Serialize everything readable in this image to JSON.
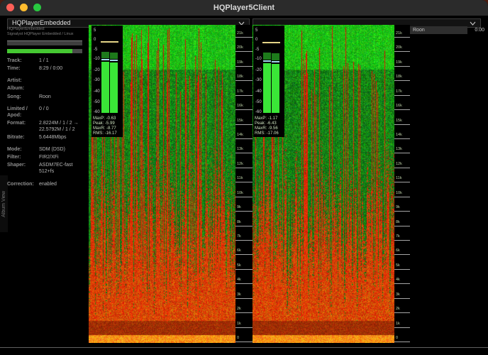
{
  "window": {
    "title": "HQPlayer5Client"
  },
  "titlebar": {
    "close_color": "#ff5f57",
    "minimize_color": "#febc2e",
    "zoom_color": "#28c840"
  },
  "toolbar": {
    "backend_value": "HQPlayerEmbedded",
    "secondary_value": ""
  },
  "sidebar": {
    "edge_tab_label": "Album View",
    "header_line1": "HQPlayer/Embedded:",
    "header_line2": "Signalyst HQPlayer Embedded / Linux",
    "track_position_pct": 87,
    "track_position_color": "#45c832",
    "info_groups": [
      [
        {
          "label": "Track:",
          "value": "1 / 1"
        },
        {
          "label": "Time:",
          "value": "8:29 / 0:00"
        }
      ],
      [
        {
          "label": "Artist:",
          "value": ""
        },
        {
          "label": "Album:",
          "value": ""
        },
        {
          "label": "Song:",
          "value": "Roon"
        }
      ],
      [
        {
          "label": "Limited / Apod:",
          "value": "0 / 0"
        },
        {
          "label": "Format:",
          "value": "2.8224M / 1 / 2 → 22.5792M / 1 / 2"
        },
        {
          "label": "Bitrate:",
          "value": "5.6448Mbps"
        }
      ],
      [
        {
          "label": "Mode:",
          "value": "SDM (DSD)"
        },
        {
          "label": "Filter:",
          "value": "FIR2/XFi"
        },
        {
          "label": "Shaper:",
          "value": "ASDM7EC-fast 512+fs"
        }
      ],
      [
        {
          "label": "Correction:",
          "value": "enabled"
        }
      ]
    ]
  },
  "meters": [
    {
      "scale_labels": [
        "5",
        "0",
        "-5",
        "-10",
        "-20",
        "-30",
        "-40",
        "-50",
        "-60"
      ],
      "maxp_db": -0.63,
      "peak_db": -5.99,
      "maxr_db": -8.77,
      "rms_db": -16.17,
      "stats": [
        "MaxP: -0.63",
        "Peak: -5.99",
        "MaxR: -8.77",
        "RMS: -16.17"
      ]
    },
    {
      "scale_labels": [
        "5",
        "0",
        "-5",
        "-10",
        "-20",
        "-30",
        "-40",
        "-50",
        "-60"
      ],
      "maxp_db": -1.17,
      "peak_db": -6.43,
      "maxr_db": -9.56,
      "rms_db": -17.06,
      "stats": [
        "MaxP: -1.17",
        "Peak: -6.43",
        "MaxR: -9.56",
        "RMS: -17.06"
      ]
    }
  ],
  "meter_colors": {
    "max_peak_line": "#e4d487",
    "peak_hold_line": "#9fd8ea",
    "peak_segment": "#1d7a1b",
    "rms_segment": "#3ae637"
  },
  "spectrogram": {
    "freq_labels": [
      "21k",
      "20k",
      "19k",
      "18k",
      "17k",
      "16k",
      "15k",
      "14k",
      "13k",
      "12k",
      "11k",
      "10k",
      "9k",
      "8k",
      "7k",
      "6k",
      "5k",
      "4k",
      "3k",
      "2k",
      "1k",
      "0"
    ],
    "palette": {
      "green": "#39e832",
      "red": "#d63008",
      "orange": "#f06a12",
      "yellow": "#ffc83c"
    }
  },
  "playlist": {
    "items": [
      {
        "name": "Roon",
        "time": "0:00"
      }
    ]
  }
}
